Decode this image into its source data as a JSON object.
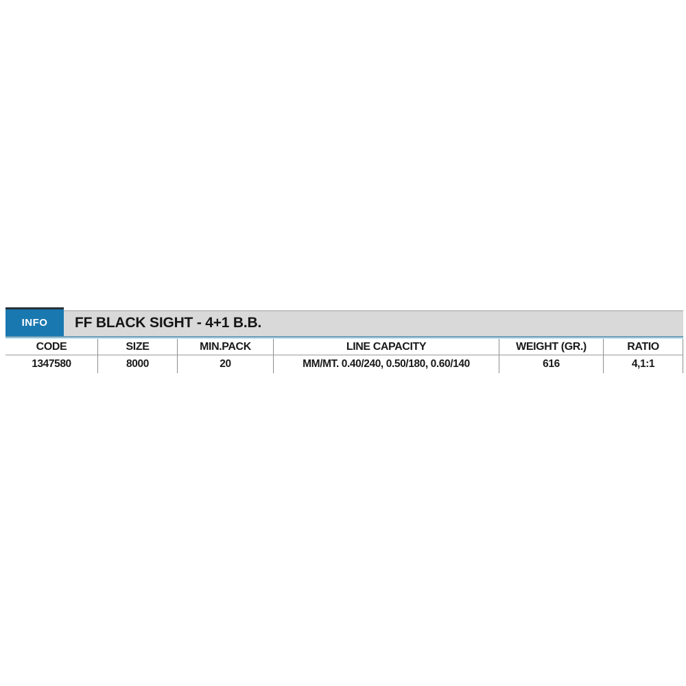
{
  "panel": {
    "info_tab_label": "INFO",
    "title": "FF BLACK SIGHT - 4+1 B.B."
  },
  "table": {
    "columns": [
      {
        "key": "code",
        "label": "CODE"
      },
      {
        "key": "size",
        "label": "SIZE"
      },
      {
        "key": "min_pack",
        "label": "MIN.PACK"
      },
      {
        "key": "line_capacity",
        "label": "LINE CAPACITY"
      },
      {
        "key": "weight",
        "label": "WEIGHT (GR.)"
      },
      {
        "key": "ratio",
        "label": "RATIO"
      }
    ],
    "rows": [
      {
        "code": "1347580",
        "size": "8000",
        "min_pack": "20",
        "line_capacity": "MM/MT. 0.40/240, 0.50/180, 0.60/140",
        "weight": "616",
        "ratio": "4,1:1"
      }
    ]
  },
  "colors": {
    "accent_blue": "#1a78b0",
    "bar_gray": "#d9d9d9",
    "underline_blue_dark": "#6f9cb2",
    "underline_blue_light": "#bfe2f2",
    "divider_gray": "#8c8c8c",
    "text_black": "#1a1a1a"
  }
}
